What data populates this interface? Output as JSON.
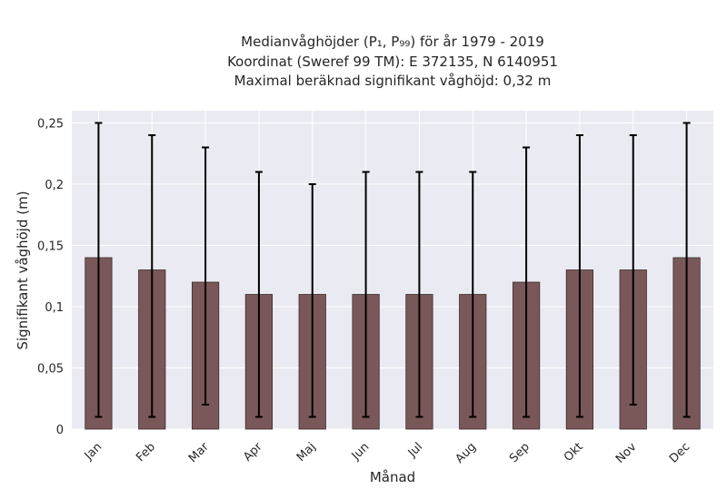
{
  "chart_data": {
    "type": "bar",
    "title": [
      "Medianvåghöjder (P₁, P₉₉) för år 1979 - 2019",
      "Koordinat (Sweref 99 TM): E 372135, N 6140951",
      "Maximal beräknad signifikant våghöjd: 0,32 m"
    ],
    "xlabel": "Månad",
    "ylabel": "Signifikant våghöjd (m)",
    "categories": [
      "Jan",
      "Feb",
      "Mar",
      "Apr",
      "Maj",
      "Jun",
      "Jul",
      "Aug",
      "Sep",
      "Okt",
      "Nov",
      "Dec"
    ],
    "values": [
      0.14,
      0.13,
      0.12,
      0.11,
      0.11,
      0.11,
      0.11,
      0.11,
      0.12,
      0.13,
      0.13,
      0.14
    ],
    "error_low": [
      0.01,
      0.01,
      0.02,
      0.01,
      0.01,
      0.01,
      0.01,
      0.01,
      0.01,
      0.01,
      0.02,
      0.01
    ],
    "error_high": [
      0.25,
      0.24,
      0.23,
      0.21,
      0.2,
      0.21,
      0.21,
      0.21,
      0.23,
      0.24,
      0.24,
      0.25
    ],
    "ylim": [
      0,
      0.26
    ],
    "yticks": [
      0,
      0.05,
      0.1,
      0.15,
      0.2,
      0.25
    ],
    "ytick_labels": [
      "0",
      "0,05",
      "0,1",
      "0,15",
      "0,2",
      "0,25"
    ],
    "grid": true,
    "colors": {
      "bar": "#7a5859",
      "bar_edge": "#3b2b2b",
      "error": "#000000",
      "plot_background": "#eaeaf2",
      "grid": "#ffffff"
    }
  }
}
